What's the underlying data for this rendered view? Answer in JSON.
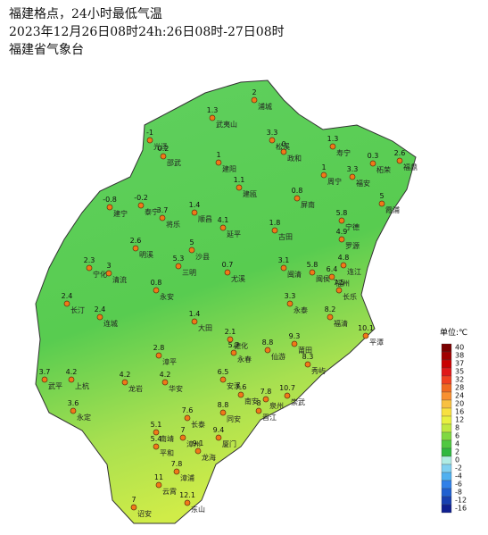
{
  "header": {
    "title": "福建格点，24小时最低气温",
    "subtitle": "2023年12月26日08时24h:26日08时-27日08时",
    "agency": "福建省气象台"
  },
  "stations": [
    {
      "value": 2,
      "name": "浦城"
    },
    {
      "value": 1.3,
      "name": "武夷山"
    },
    {
      "value": -1,
      "name": "光泽"
    },
    {
      "value": 3.3,
      "name": "松溪"
    },
    {
      "value": 0,
      "name": "政和"
    },
    {
      "value": 1.3,
      "name": "寿宁"
    },
    {
      "value": 2.6,
      "name": "福鼎"
    },
    {
      "value": 0.2,
      "name": "邵武"
    },
    {
      "value": 1,
      "name": "建阳"
    },
    {
      "value": 0.3,
      "name": "柘荣"
    },
    {
      "value": 3.3,
      "name": "福安"
    },
    {
      "value": 1,
      "name": "周宁"
    },
    {
      "value": 1.1,
      "name": "建瓯"
    },
    {
      "value": 0.8,
      "name": "屏南"
    },
    {
      "value": 5,
      "name": "霞浦"
    },
    {
      "value": -0.8,
      "name": "建宁"
    },
    {
      "value": -0.2,
      "name": "泰宁"
    },
    {
      "value": 3.7,
      "name": "将乐"
    },
    {
      "value": 1.4,
      "name": "顺昌"
    },
    {
      "value": 5.8,
      "name": "宁德"
    },
    {
      "value": 4.1,
      "name": "延平"
    },
    {
      "value": 1.8,
      "name": "古田"
    },
    {
      "value": 4.9,
      "name": "罗源"
    },
    {
      "value": 2.6,
      "name": "明溪"
    },
    {
      "value": 5,
      "name": "沙县"
    },
    {
      "value": 5.3,
      "name": "三明"
    },
    {
      "value": 2.3,
      "name": "宁化"
    },
    {
      "value": 3,
      "name": "清流"
    },
    {
      "value": 0.7,
      "name": "尤溪"
    },
    {
      "value": 3.1,
      "name": "闽清"
    },
    {
      "value": 5.8,
      "name": "闽侯"
    },
    {
      "value": 6.4,
      "name": "福州"
    },
    {
      "value": 4.8,
      "name": "连江"
    },
    {
      "value": 7.5,
      "name": "长乐"
    },
    {
      "value": 0.8,
      "name": "永安"
    },
    {
      "value": 2.4,
      "name": "长汀"
    },
    {
      "value": 2.4,
      "name": "连城"
    },
    {
      "value": 3.3,
      "name": "永泰"
    },
    {
      "value": 8.2,
      "name": "福清"
    },
    {
      "value": 10.1,
      "name": "平潭"
    },
    {
      "value": 1.4,
      "name": "大田"
    },
    {
      "value": 2.1,
      "name": "德化"
    },
    {
      "value": 5.2,
      "name": "永春"
    },
    {
      "value": 8.8,
      "name": "仙游"
    },
    {
      "value": 9.3,
      "name": "莆田"
    },
    {
      "value": 8.3,
      "name": "秀屿"
    },
    {
      "value": 2.8,
      "name": "漳平"
    },
    {
      "value": 3.7,
      "name": "武平"
    },
    {
      "value": 4.2,
      "name": "上杭"
    },
    {
      "value": 4.2,
      "name": "龙岩"
    },
    {
      "value": 4.2,
      "name": "华安"
    },
    {
      "value": 6.5,
      "name": "安溪"
    },
    {
      "value": 7.6,
      "name": "南安"
    },
    {
      "value": 7.8,
      "name": "泉州"
    },
    {
      "value": 8,
      "name": "晋江"
    },
    {
      "value": 10.7,
      "name": "崇武"
    },
    {
      "value": 3.6,
      "name": "永定"
    },
    {
      "value": 8.8,
      "name": "同安"
    },
    {
      "value": 7.6,
      "name": "长泰"
    },
    {
      "value": 5.1,
      "name": "南靖"
    },
    {
      "value": 7,
      "name": "漳州"
    },
    {
      "value": 9.1,
      "name": "龙海"
    },
    {
      "value": 9.4,
      "name": "厦门"
    },
    {
      "value": 5.4,
      "name": "平和"
    },
    {
      "value": 7.8,
      "name": "漳浦"
    },
    {
      "value": 11,
      "name": "云霄"
    },
    {
      "value": 12.1,
      "name": "东山"
    },
    {
      "value": 7,
      "name": "诏安"
    }
  ],
  "legend": {
    "unit": "单位:℃",
    "items": [
      {
        "value": 40,
        "color": "#7a0000"
      },
      {
        "value": 38,
        "color": "#a00000"
      },
      {
        "value": 37,
        "color": "#c80000"
      },
      {
        "value": 35,
        "color": "#e01818"
      },
      {
        "value": 32,
        "color": "#f04020"
      },
      {
        "value": 28,
        "color": "#f06a20"
      },
      {
        "value": 24,
        "color": "#f89030"
      },
      {
        "value": 20,
        "color": "#f8c040"
      },
      {
        "value": 16,
        "color": "#f8e040"
      },
      {
        "value": 12,
        "color": "#e8f040"
      },
      {
        "value": 8,
        "color": "#c0e840"
      },
      {
        "value": 6,
        "color": "#80d840"
      },
      {
        "value": 4,
        "color": "#50c840"
      },
      {
        "value": 2,
        "color": "#30b840"
      },
      {
        "value": 0,
        "color": "#b0ece4"
      },
      {
        "value": -2,
        "color": "#80d0f0"
      },
      {
        "value": -4,
        "color": "#50b0f0"
      },
      {
        "value": -6,
        "color": "#3080e8"
      },
      {
        "value": -8,
        "color": "#2060d0"
      },
      {
        "value": -12,
        "color": "#1840b0"
      },
      {
        "value": -16,
        "color": "#102090"
      }
    ]
  }
}
